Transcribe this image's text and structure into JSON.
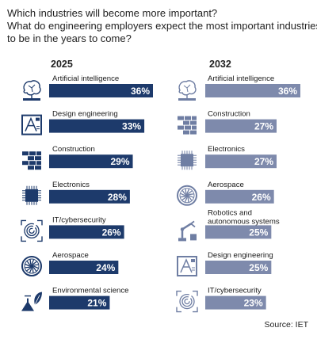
{
  "title_lines": [
    "Which industries will become more important?",
    "What do engineering employers expect the most important industries",
    "to be in the years to come?"
  ],
  "source": "Source: IET",
  "colors": {
    "bar_2025": "#1d3a6b",
    "bar_2032": "#7e8aac",
    "icon_2025": "#1d3a6b",
    "icon_2032": "#6f7ea3"
  },
  "chart_data": [
    {
      "type": "bar",
      "title": "2025",
      "orientation": "horizontal",
      "value_suffix": "%",
      "categories": [
        {
          "label": "Artificial intelligence",
          "icon": "ai-brain-icon"
        },
        {
          "label": "Design engineering",
          "icon": "design-engineering-icon"
        },
        {
          "label": "Construction",
          "icon": "brick-wall-icon"
        },
        {
          "label": "Electronics",
          "icon": "microchip-icon"
        },
        {
          "label": "IT/cybersecurity",
          "icon": "fingerprint-icon"
        },
        {
          "label": "Aerospace",
          "icon": "jet-engine-icon"
        },
        {
          "label": "Environmental science",
          "icon": "flask-leaf-icon"
        }
      ],
      "values": [
        36,
        33,
        29,
        28,
        26,
        24,
        21
      ]
    },
    {
      "type": "bar",
      "title": "2032",
      "orientation": "horizontal",
      "value_suffix": "%",
      "categories": [
        {
          "label": "Artificial intelligence",
          "icon": "ai-brain-icon"
        },
        {
          "label": "Construction",
          "icon": "brick-wall-icon"
        },
        {
          "label": "Electronics",
          "icon": "microchip-icon"
        },
        {
          "label": "Aerospace",
          "icon": "jet-engine-icon"
        },
        {
          "label": "Robotics and\nautonomous systems",
          "icon": "robot-arm-icon"
        },
        {
          "label": "Design engineering",
          "icon": "design-engineering-icon"
        },
        {
          "label": "IT/cybersecurity",
          "icon": "fingerprint-icon"
        }
      ],
      "values": [
        36,
        27,
        27,
        26,
        25,
        25,
        23
      ]
    }
  ]
}
